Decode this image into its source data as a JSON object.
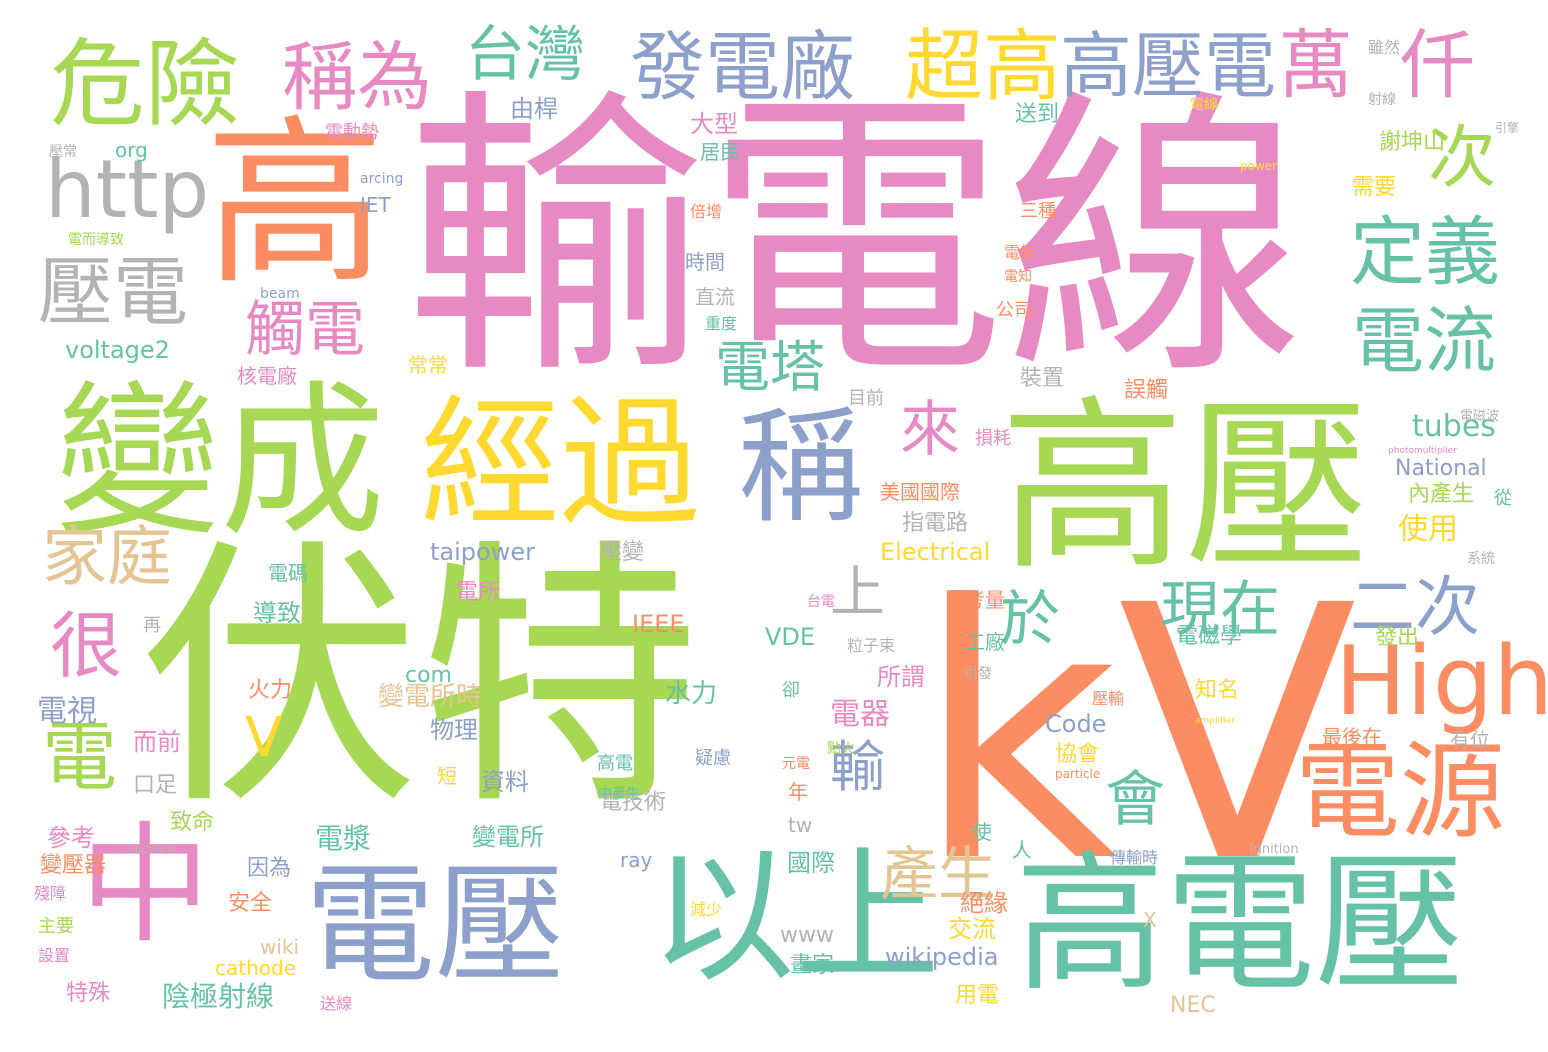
{
  "palette": {
    "green": "#a6d854",
    "pink": "#e78ac3",
    "orange": "#fc8d62",
    "teal": "#66c2a5",
    "blue": "#8da0cb",
    "yellow": "#ffd92f",
    "tan": "#e5c494",
    "gray": "#b3b3b3"
  },
  "words": [
    {
      "text": "輸電線",
      "color": "pink"
    },
    {
      "text": "kV",
      "color": "orange"
    },
    {
      "text": "伏特",
      "color": "green"
    },
    {
      "text": "高壓",
      "color": "green"
    },
    {
      "text": "高電壓",
      "color": "teal"
    },
    {
      "text": "電壓",
      "color": "blue"
    },
    {
      "text": "變成",
      "color": "green"
    },
    {
      "text": "經過",
      "color": "yellow"
    },
    {
      "text": "高",
      "color": "orange"
    },
    {
      "text": "以上",
      "color": "teal"
    },
    {
      "text": "中",
      "color": "pink"
    },
    {
      "text": "稱",
      "color": "blue"
    },
    {
      "text": "危險",
      "color": "green"
    },
    {
      "text": "電源",
      "color": "orange"
    },
    {
      "text": "http",
      "color": "gray"
    },
    {
      "text": "High",
      "color": "orange"
    },
    {
      "text": "發電廠",
      "color": "blue"
    },
    {
      "text": "稱為",
      "color": "pink"
    },
    {
      "text": "超高",
      "color": "yellow"
    },
    {
      "text": "高壓電",
      "color": "blue"
    },
    {
      "text": "萬",
      "color": "pink"
    },
    {
      "text": "仟",
      "color": "pink"
    },
    {
      "text": "壓電",
      "color": "gray"
    },
    {
      "text": "定義",
      "color": "teal"
    },
    {
      "text": "電流",
      "color": "teal"
    },
    {
      "text": "次",
      "color": "green"
    },
    {
      "text": "台灣",
      "color": "teal"
    },
    {
      "text": "家庭",
      "color": "tan"
    },
    {
      "text": "電",
      "color": "green"
    },
    {
      "text": "很",
      "color": "pink"
    },
    {
      "text": "觸電",
      "color": "pink"
    },
    {
      "text": "電塔",
      "color": "teal"
    },
    {
      "text": "來",
      "color": "pink"
    },
    {
      "text": "現在",
      "color": "teal"
    },
    {
      "text": "二次",
      "color": "blue"
    },
    {
      "text": "於",
      "color": "teal"
    },
    {
      "text": "上",
      "color": "gray"
    },
    {
      "text": "輸",
      "color": "blue"
    },
    {
      "text": "會",
      "color": "teal"
    },
    {
      "text": "產生",
      "color": "tan"
    },
    {
      "text": "V",
      "color": "yellow"
    },
    {
      "text": "tubes",
      "color": "teal"
    },
    {
      "text": "National",
      "color": "blue"
    },
    {
      "text": "taipower",
      "color": "blue"
    },
    {
      "text": "Electrical",
      "color": "yellow"
    },
    {
      "text": "IEEE",
      "color": "orange"
    },
    {
      "text": "VDE",
      "color": "teal"
    },
    {
      "text": "Code",
      "color": "blue"
    },
    {
      "text": "wikipedia",
      "color": "blue"
    },
    {
      "text": "voltage2",
      "color": "teal"
    },
    {
      "text": "org",
      "color": "teal"
    },
    {
      "text": "com",
      "color": "teal"
    },
    {
      "text": "IET",
      "color": "blue"
    },
    {
      "text": "arcing",
      "color": "blue"
    },
    {
      "text": "beam",
      "color": "blue"
    },
    {
      "text": "www",
      "color": "gray"
    },
    {
      "text": "wiki",
      "color": "tan"
    },
    {
      "text": "cathode",
      "color": "yellow"
    },
    {
      "text": "ray",
      "color": "blue"
    },
    {
      "text": "tw",
      "color": "gray"
    },
    {
      "text": "NEC",
      "color": "tan"
    },
    {
      "text": "power",
      "color": "yellow"
    },
    {
      "text": "particle",
      "color": "orange"
    },
    {
      "text": "ignition",
      "color": "gray"
    },
    {
      "text": "vacuum",
      "color": "gray"
    },
    {
      "text": "amplifier",
      "color": "yellow"
    },
    {
      "text": "photomultiplier",
      "color": "pink"
    },
    {
      "text": "X",
      "color": "tan"
    },
    {
      "text": "由桿",
      "color": "blue"
    },
    {
      "text": "電動勢",
      "color": "pink"
    },
    {
      "text": "大型",
      "color": "pink"
    },
    {
      "text": "居民",
      "color": "teal"
    },
    {
      "text": "送到",
      "color": "teal"
    },
    {
      "text": "倍增",
      "color": "orange"
    },
    {
      "text": "時間",
      "color": "blue"
    },
    {
      "text": "直流",
      "color": "gray"
    },
    {
      "text": "重度",
      "color": "teal"
    },
    {
      "text": "核電廠",
      "color": "pink"
    },
    {
      "text": "常常",
      "color": "yellow"
    },
    {
      "text": "目前",
      "color": "gray"
    },
    {
      "text": "裝置",
      "color": "gray"
    },
    {
      "text": "誤觸",
      "color": "orange"
    },
    {
      "text": "損耗",
      "color": "pink"
    },
    {
      "text": "美國國際",
      "color": "orange"
    },
    {
      "text": "指電路",
      "color": "gray"
    },
    {
      "text": "內產生",
      "color": "green"
    },
    {
      "text": "使用",
      "color": "yellow"
    },
    {
      "text": "從",
      "color": "teal"
    },
    {
      "text": "電碼",
      "color": "teal"
    },
    {
      "text": "壓變",
      "color": "gray"
    },
    {
      "text": "導致",
      "color": "teal"
    },
    {
      "text": "電所",
      "color": "pink"
    },
    {
      "text": "考量",
      "color": "orange"
    },
    {
      "text": "工廠",
      "color": "teal"
    },
    {
      "text": "電磁學",
      "color": "teal"
    },
    {
      "text": "知名",
      "color": "yellow"
    },
    {
      "text": "所謂",
      "color": "pink"
    },
    {
      "text": "電器",
      "color": "pink"
    },
    {
      "text": "火力",
      "color": "orange"
    },
    {
      "text": "水力",
      "color": "teal"
    },
    {
      "text": "抗議",
      "color": "green"
    },
    {
      "text": "變電所時",
      "color": "tan"
    },
    {
      "text": "物理",
      "color": "blue"
    },
    {
      "text": "資料",
      "color": "blue"
    },
    {
      "text": "疑慮",
      "color": "blue"
    },
    {
      "text": "高電",
      "color": "teal"
    },
    {
      "text": "協會",
      "color": "yellow"
    },
    {
      "text": "最後在",
      "color": "orange"
    },
    {
      "text": "有位",
      "color": "gray"
    },
    {
      "text": "電視",
      "color": "blue"
    },
    {
      "text": "而前",
      "color": "pink"
    },
    {
      "text": "口足",
      "color": "gray"
    },
    {
      "text": "電漿",
      "color": "teal"
    },
    {
      "text": "變電所",
      "color": "teal"
    },
    {
      "text": "電技術",
      "color": "gray"
    },
    {
      "text": "參考",
      "color": "pink"
    },
    {
      "text": "致命",
      "color": "green"
    },
    {
      "text": "變壓器",
      "color": "orange"
    },
    {
      "text": "因為",
      "color": "blue"
    },
    {
      "text": "安全",
      "color": "orange"
    },
    {
      "text": "國際",
      "color": "teal"
    },
    {
      "text": "絕緣",
      "color": "orange"
    },
    {
      "text": "交流",
      "color": "yellow"
    },
    {
      "text": "陰極射線",
      "color": "teal"
    },
    {
      "text": "畫家",
      "color": "teal"
    },
    {
      "text": "特殊",
      "color": "pink"
    },
    {
      "text": "用電",
      "color": "yellow"
    },
    {
      "text": "送線",
      "color": "pink"
    },
    {
      "text": "主要",
      "color": "green"
    },
    {
      "text": "設置",
      "color": "pink"
    },
    {
      "text": "殘障",
      "color": "pink"
    },
    {
      "text": "謝坤山",
      "color": "green"
    },
    {
      "text": "需要",
      "color": "yellow"
    },
    {
      "text": "雖然",
      "color": "gray"
    },
    {
      "text": "射線",
      "color": "gray"
    },
    {
      "text": "引擎",
      "color": "gray"
    },
    {
      "text": "電磁波",
      "color": "gray"
    },
    {
      "text": "系統",
      "color": "gray"
    },
    {
      "text": "三種",
      "color": "orange"
    },
    {
      "text": "電能",
      "color": "orange"
    },
    {
      "text": "電知",
      "color": "orange"
    },
    {
      "text": "公司",
      "color": "orange"
    },
    {
      "text": "電線",
      "color": "yellow"
    },
    {
      "text": "年",
      "color": "orange"
    },
    {
      "text": "短",
      "color": "yellow"
    },
    {
      "text": "人",
      "color": "teal"
    },
    {
      "text": "使",
      "color": "teal"
    },
    {
      "text": "再",
      "color": "gray"
    },
    {
      "text": "卻",
      "color": "teal"
    },
    {
      "text": "減少",
      "color": "yellow"
    },
    {
      "text": "中產生",
      "color": "teal"
    },
    {
      "text": "元電",
      "color": "orange"
    },
    {
      "text": "點火",
      "color": "green"
    },
    {
      "text": "壓輸",
      "color": "orange"
    },
    {
      "text": "傳輸時",
      "color": "blue"
    },
    {
      "text": "發出",
      "color": "green"
    },
    {
      "text": "台電",
      "color": "pink"
    },
    {
      "text": "粒子束",
      "color": "gray"
    },
    {
      "text": "引發",
      "color": "gray"
    },
    {
      "text": "壓常",
      "color": "gray"
    },
    {
      "text": "電而導致",
      "color": "green"
    }
  ]
}
